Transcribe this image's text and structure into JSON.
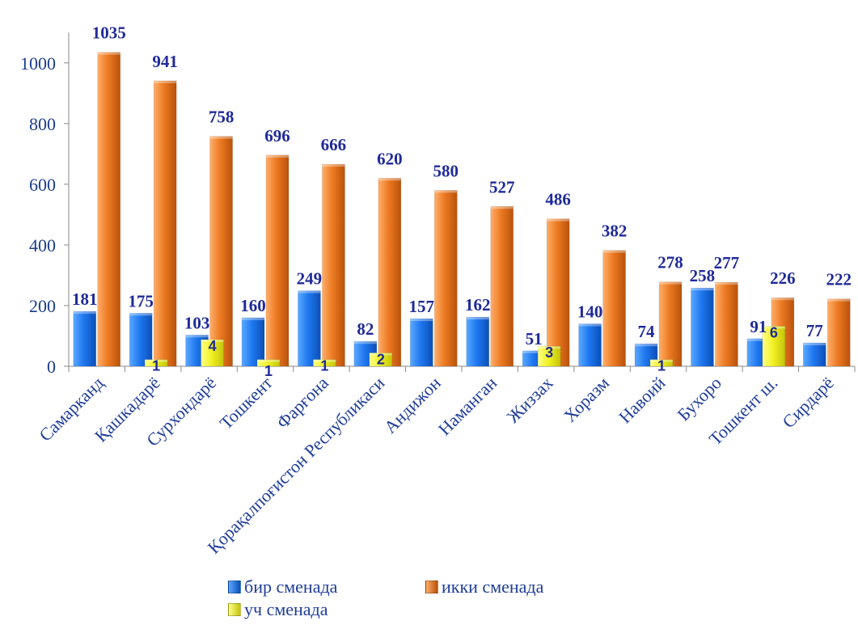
{
  "chart_data": {
    "type": "bar",
    "categories": [
      "Самарканд",
      "Қашкадарё",
      "Сурхондарё",
      "Тошкент",
      "Фарғона",
      "Қорақалпоғистон Республикаси",
      "Андижон",
      "Наманган",
      "Жиззах",
      "Хоразм",
      "Навоий",
      "Бухоро",
      "Тошкент ш.",
      "Сирдарё"
    ],
    "series": [
      {
        "name": "бир сменада",
        "color": "#1f6fe0",
        "values": [
          181,
          175,
          103,
          160,
          249,
          82,
          157,
          162,
          51,
          140,
          74,
          258,
          91,
          77
        ]
      },
      {
        "name": "икки сменада",
        "color": "#e8741c",
        "values": [
          1035,
          941,
          758,
          696,
          666,
          620,
          580,
          527,
          486,
          382,
          278,
          277,
          226,
          222
        ]
      },
      {
        "name": "уч сменада",
        "color": "#e8e81a",
        "values": [
          null,
          1,
          4,
          1,
          1,
          2,
          null,
          null,
          3,
          null,
          1,
          null,
          6,
          null
        ]
      }
    ],
    "yticks": [
      0,
      200,
      400,
      600,
      800,
      1000
    ],
    "ylim": [
      0,
      1100
    ],
    "grid": false,
    "legend_position": "bottom"
  }
}
